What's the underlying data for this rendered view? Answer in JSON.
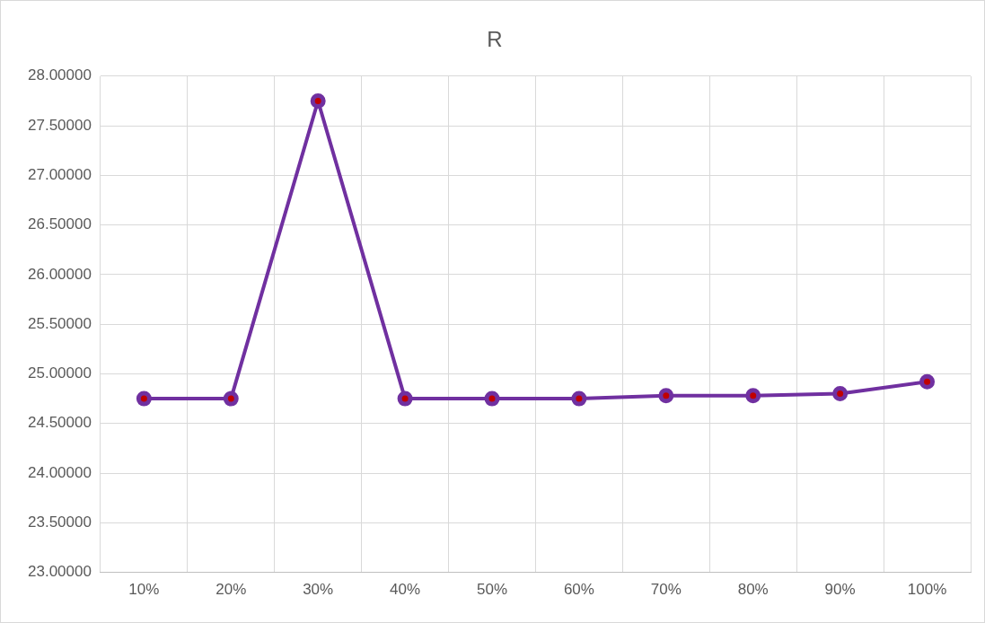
{
  "chart_data": {
    "type": "line",
    "title": "R",
    "categories": [
      "10%",
      "20%",
      "30%",
      "40%",
      "50%",
      "60%",
      "70%",
      "80%",
      "90%",
      "100%"
    ],
    "series": [
      {
        "color": "#7030a0",
        "values": [
          24.75,
          24.75,
          27.75,
          24.75,
          24.75,
          24.75,
          24.78,
          24.78,
          24.8,
          24.92
        ]
      }
    ],
    "ylim": [
      23,
      28
    ],
    "yticks": [
      {
        "value": 23,
        "label": "23.00000"
      },
      {
        "value": 23.5,
        "label": "23.50000"
      },
      {
        "value": 24,
        "label": "24.00000"
      },
      {
        "value": 24.5,
        "label": "24.50000"
      },
      {
        "value": 25,
        "label": "25.00000"
      },
      {
        "value": 25.5,
        "label": "25.50000"
      },
      {
        "value": 26,
        "label": "26.00000"
      },
      {
        "value": 26.5,
        "label": "26.50000"
      },
      {
        "value": 27,
        "label": "27.00000"
      },
      {
        "value": 27.5,
        "label": "27.50000"
      },
      {
        "value": 28,
        "label": "28.00000"
      }
    ],
    "grid": true,
    "legend": false,
    "marker": "circle",
    "line_style": "solid"
  }
}
